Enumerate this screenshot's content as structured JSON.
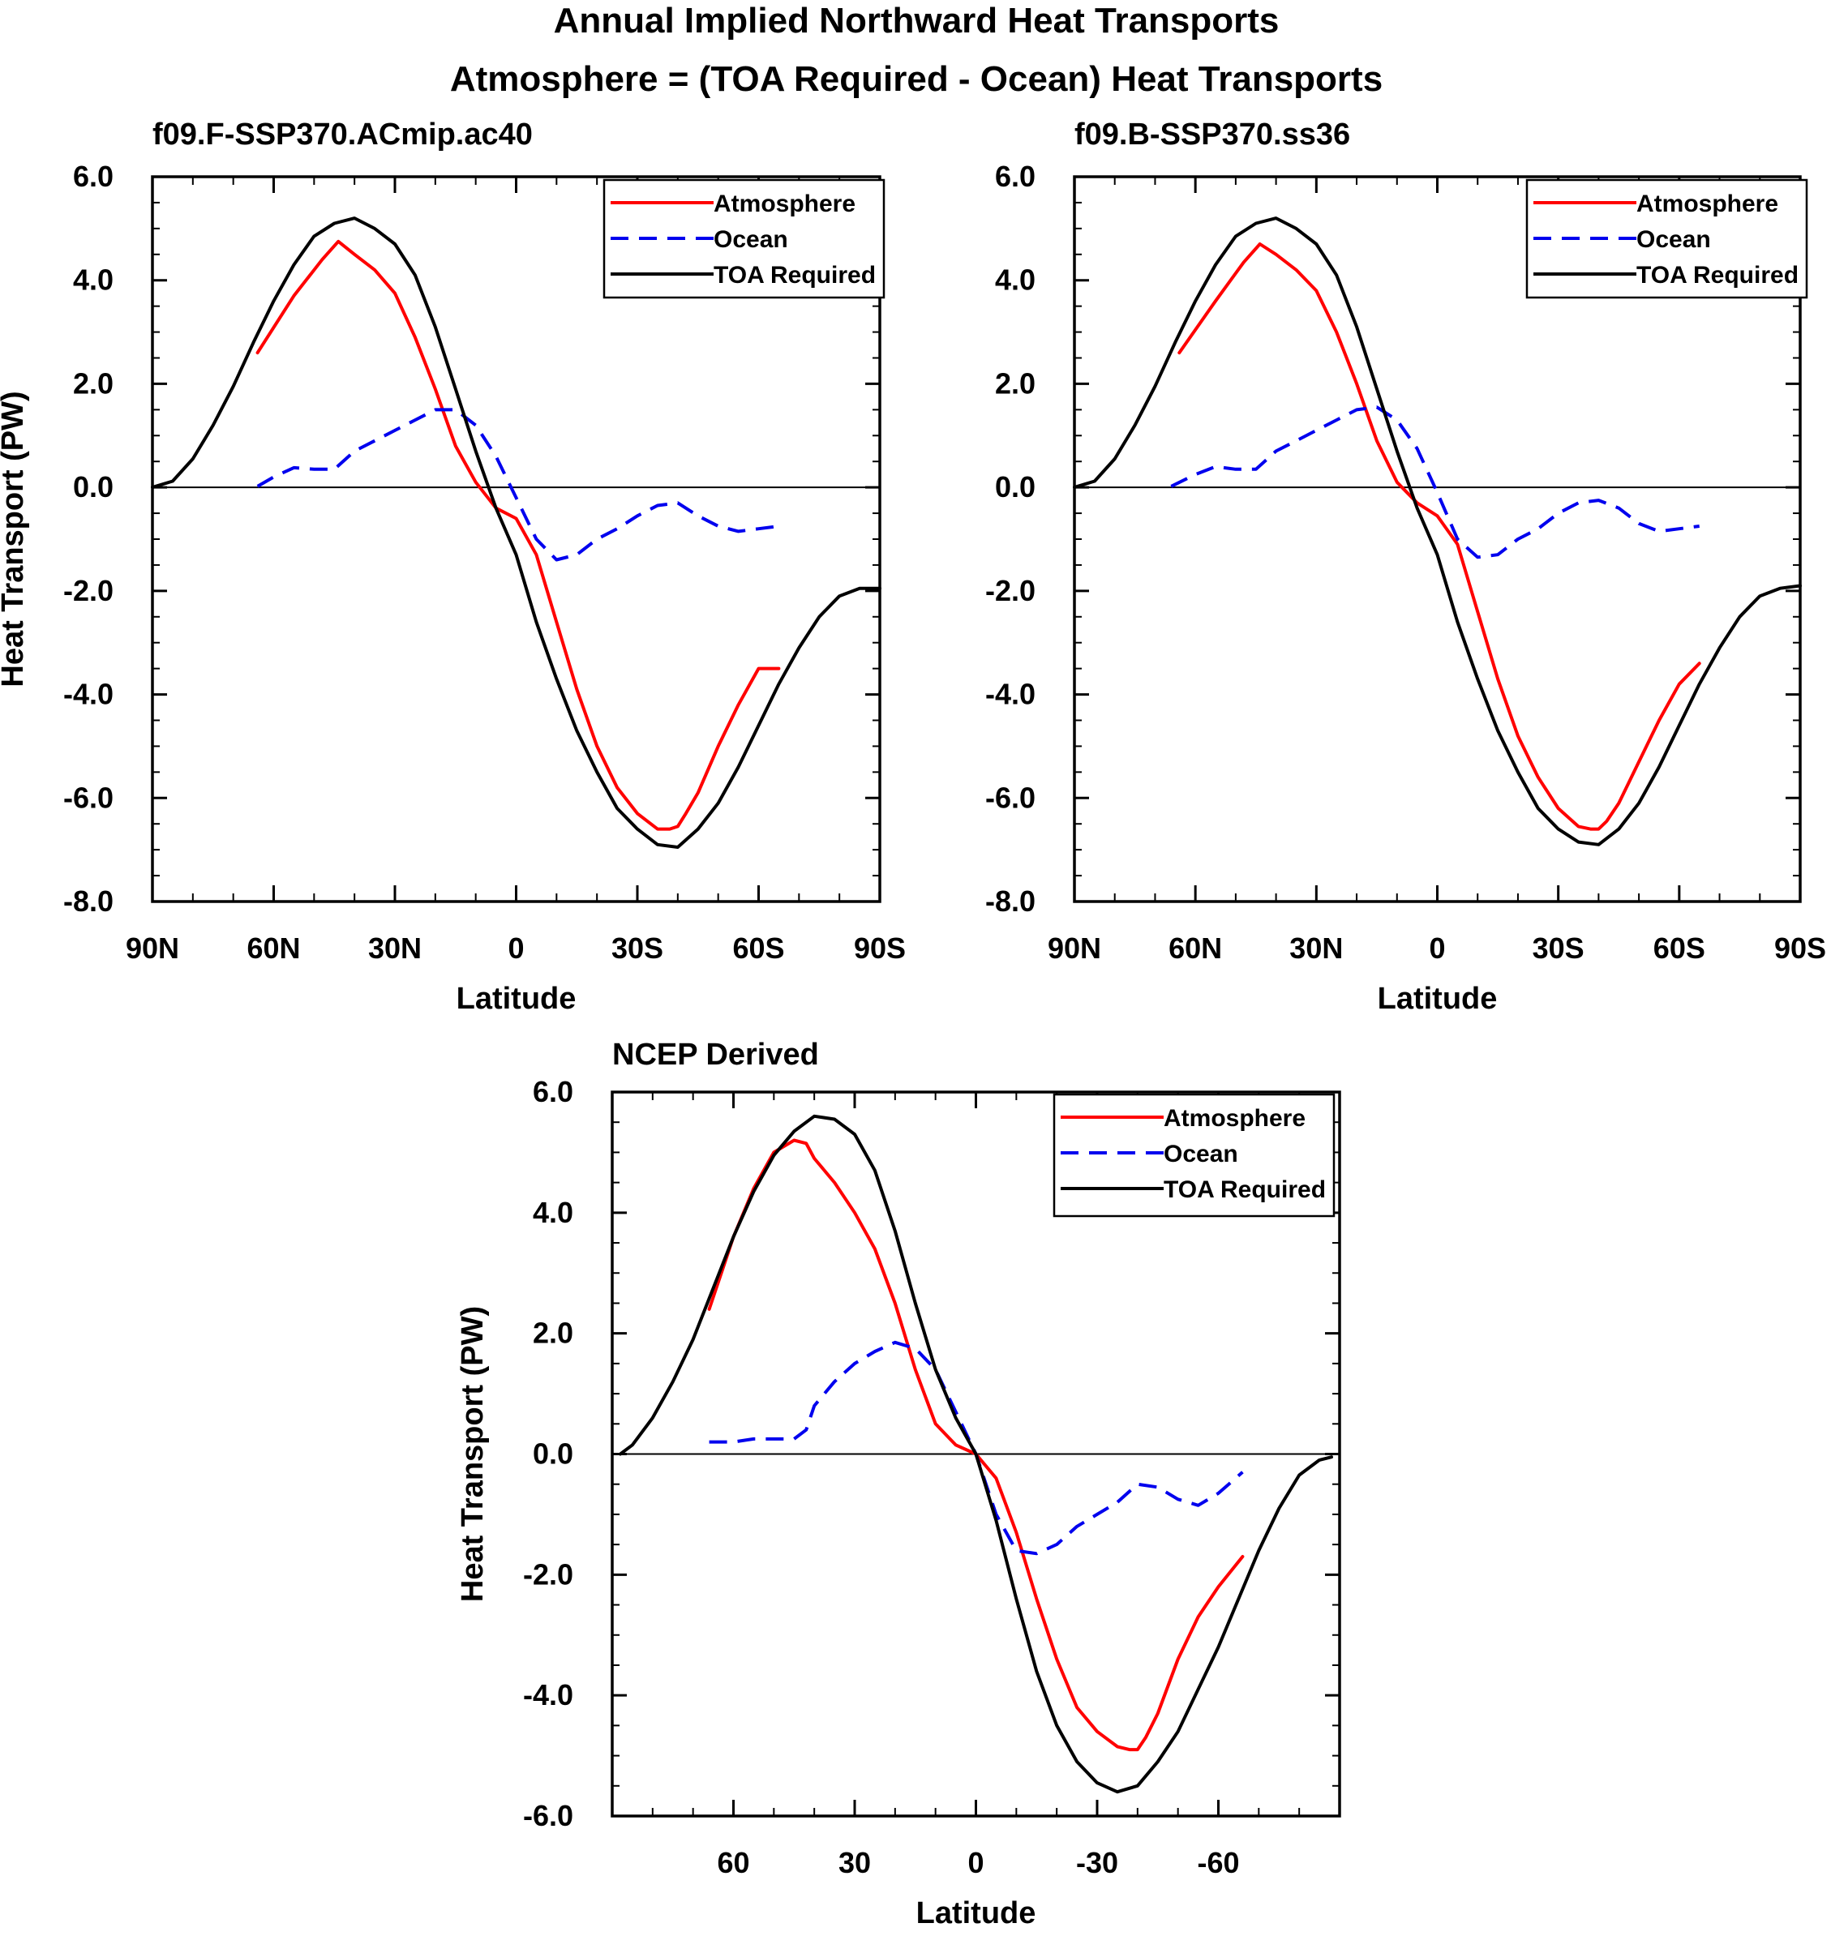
{
  "figure": {
    "title_line1": "Annual Implied Northward Heat Transports",
    "title_line2": "Atmosphere = (TOA Required - Ocean) Heat Transports"
  },
  "colors": {
    "atmosphere": "#ff0000",
    "ocean": "#0000ee",
    "toa": "#000000",
    "zero": "#000000"
  },
  "chart_data": [
    {
      "type": "line",
      "title": "f09.F-SSP370.ACmip.ac40",
      "xlabel": "Latitude",
      "ylabel": "Heat Transport (PW)",
      "xlim": [
        90,
        -90
      ],
      "ylim": [
        -8,
        6
      ],
      "xticks": [
        90,
        60,
        30,
        0,
        -30,
        -60,
        -90
      ],
      "xtick_labels": [
        "90N",
        "60N",
        "30N",
        "0",
        "30S",
        "60S",
        "90S"
      ],
      "yticks": [
        -8,
        -6,
        -4,
        -2,
        0,
        2,
        4,
        6
      ],
      "ytick_labels": [
        "-8.0",
        "-6.0",
        "-4.0",
        "-2.0",
        "0.0",
        "2.0",
        "4.0",
        "6.0"
      ],
      "legend_position": "top-right",
      "series": [
        {
          "name": "Atmosphere",
          "style": "solid",
          "color": "#ff0000",
          "x": [
            64,
            55,
            48,
            44,
            40,
            35,
            30,
            25,
            20,
            15,
            10,
            5,
            0,
            -5,
            -10,
            -15,
            -20,
            -25,
            -30,
            -35,
            -38,
            -40,
            -42,
            -45,
            -50,
            -55,
            -60,
            -65
          ],
          "y": [
            2.6,
            3.7,
            4.4,
            4.75,
            4.5,
            4.2,
            3.75,
            2.9,
            1.9,
            0.8,
            0.1,
            -0.4,
            -0.6,
            -1.3,
            -2.6,
            -3.9,
            -5.0,
            -5.8,
            -6.3,
            -6.6,
            -6.6,
            -6.55,
            -6.3,
            -5.9,
            -5.0,
            -4.2,
            -3.5,
            -3.5
          ]
        },
        {
          "name": "Ocean",
          "style": "dashed",
          "color": "#0000ee",
          "x": [
            64,
            60,
            55,
            50,
            45,
            40,
            35,
            30,
            25,
            20,
            15,
            10,
            5,
            0,
            -5,
            -10,
            -15,
            -20,
            -25,
            -30,
            -35,
            -40,
            -45,
            -50,
            -55,
            -60,
            -65
          ],
          "y": [
            0.02,
            0.2,
            0.38,
            0.35,
            0.35,
            0.7,
            0.9,
            1.1,
            1.3,
            1.5,
            1.5,
            1.2,
            0.6,
            -0.2,
            -1.0,
            -1.4,
            -1.3,
            -1.0,
            -0.8,
            -0.55,
            -0.35,
            -0.3,
            -0.55,
            -0.75,
            -0.85,
            -0.8,
            -0.75
          ]
        },
        {
          "name": "TOA Required",
          "style": "solid",
          "color": "#000000",
          "x": [
            90,
            85,
            80,
            75,
            70,
            65,
            60,
            55,
            50,
            45,
            40,
            35,
            30,
            25,
            20,
            15,
            10,
            5,
            0,
            -5,
            -10,
            -15,
            -20,
            -25,
            -30,
            -35,
            -40,
            -45,
            -50,
            -55,
            -60,
            -65,
            -70,
            -75,
            -80,
            -85,
            -90
          ],
          "y": [
            0.0,
            0.12,
            0.55,
            1.2,
            1.95,
            2.8,
            3.6,
            4.3,
            4.85,
            5.1,
            5.2,
            5.0,
            4.7,
            4.1,
            3.1,
            1.9,
            0.7,
            -0.4,
            -1.3,
            -2.6,
            -3.7,
            -4.7,
            -5.5,
            -6.2,
            -6.6,
            -6.9,
            -6.95,
            -6.6,
            -6.1,
            -5.4,
            -4.6,
            -3.8,
            -3.1,
            -2.5,
            -2.1,
            -1.95,
            -1.95
          ]
        }
      ]
    },
    {
      "type": "line",
      "title": "f09.B-SSP370.ss36",
      "xlabel": "Latitude",
      "ylabel": "",
      "xlim": [
        90,
        -90
      ],
      "ylim": [
        -8,
        6
      ],
      "xticks": [
        90,
        60,
        30,
        0,
        -30,
        -60,
        -90
      ],
      "xtick_labels": [
        "90N",
        "60N",
        "30N",
        "0",
        "30S",
        "60S",
        "90S"
      ],
      "yticks": [
        -8,
        -6,
        -4,
        -2,
        0,
        2,
        4,
        6
      ],
      "ytick_labels": [
        "-8.0",
        "-6.0",
        "-4.0",
        "-2.0",
        "0.0",
        "2.0",
        "4.0",
        "6.0"
      ],
      "legend_position": "top-right",
      "series": [
        {
          "name": "Atmosphere",
          "style": "solid",
          "color": "#ff0000",
          "x": [
            64,
            55,
            48,
            44,
            40,
            35,
            30,
            25,
            20,
            15,
            10,
            5,
            0,
            -5,
            -10,
            -15,
            -20,
            -25,
            -30,
            -35,
            -38,
            -40,
            -42,
            -45,
            -50,
            -55,
            -60,
            -65
          ],
          "y": [
            2.6,
            3.6,
            4.35,
            4.7,
            4.5,
            4.2,
            3.8,
            3.0,
            2.0,
            0.9,
            0.1,
            -0.3,
            -0.55,
            -1.1,
            -2.4,
            -3.7,
            -4.8,
            -5.6,
            -6.2,
            -6.55,
            -6.6,
            -6.6,
            -6.45,
            -6.1,
            -5.3,
            -4.5,
            -3.8,
            -3.4
          ]
        },
        {
          "name": "Ocean",
          "style": "dashed",
          "color": "#0000ee",
          "x": [
            66,
            60,
            55,
            50,
            45,
            40,
            35,
            30,
            25,
            20,
            15,
            10,
            5,
            0,
            -5,
            -10,
            -15,
            -20,
            -25,
            -30,
            -35,
            -40,
            -45,
            -50,
            -55,
            -60,
            -65
          ],
          "y": [
            0.02,
            0.25,
            0.4,
            0.35,
            0.35,
            0.7,
            0.9,
            1.1,
            1.3,
            1.5,
            1.55,
            1.3,
            0.75,
            -0.1,
            -1.0,
            -1.35,
            -1.3,
            -1.0,
            -0.8,
            -0.5,
            -0.3,
            -0.25,
            -0.4,
            -0.7,
            -0.85,
            -0.8,
            -0.75
          ]
        },
        {
          "name": "TOA Required",
          "style": "solid",
          "color": "#000000",
          "x": [
            90,
            85,
            80,
            75,
            70,
            65,
            60,
            55,
            50,
            45,
            40,
            35,
            30,
            25,
            20,
            15,
            10,
            5,
            0,
            -5,
            -10,
            -15,
            -20,
            -25,
            -30,
            -35,
            -40,
            -45,
            -50,
            -55,
            -60,
            -65,
            -70,
            -75,
            -80,
            -85,
            -90
          ],
          "y": [
            0.0,
            0.12,
            0.55,
            1.2,
            1.95,
            2.8,
            3.6,
            4.3,
            4.85,
            5.1,
            5.2,
            5.0,
            4.7,
            4.1,
            3.1,
            1.9,
            0.7,
            -0.4,
            -1.3,
            -2.6,
            -3.7,
            -4.7,
            -5.5,
            -6.2,
            -6.6,
            -6.85,
            -6.9,
            -6.6,
            -6.1,
            -5.4,
            -4.6,
            -3.8,
            -3.1,
            -2.5,
            -2.1,
            -1.95,
            -1.9
          ]
        }
      ]
    },
    {
      "type": "line",
      "title": "NCEP Derived",
      "xlabel": "Latitude",
      "ylabel": "Heat Transport (PW)",
      "xlim": [
        90,
        -90
      ],
      "ylim": [
        -6,
        6
      ],
      "xticks": [
        60,
        30,
        0,
        -30,
        -60
      ],
      "xtick_labels": [
        "60",
        "30",
        "0",
        "-30",
        "-60"
      ],
      "yticks": [
        -6,
        -4,
        -2,
        0,
        2,
        4,
        6
      ],
      "ytick_labels": [
        "-6.0",
        "-4.0",
        "-2.0",
        "0.0",
        "2.0",
        "4.0",
        "6.0"
      ],
      "legend_position": "top-right",
      "series": [
        {
          "name": "Atmosphere",
          "style": "solid",
          "color": "#ff0000",
          "x": [
            66,
            60,
            55,
            50,
            45,
            42,
            40,
            35,
            30,
            25,
            20,
            15,
            10,
            5,
            0,
            -5,
            -10,
            -15,
            -20,
            -25,
            -30,
            -35,
            -38,
            -40,
            -42,
            -45,
            -50,
            -55,
            -60,
            -66
          ],
          "y": [
            2.4,
            3.6,
            4.4,
            5.0,
            5.2,
            5.15,
            4.9,
            4.5,
            4.0,
            3.4,
            2.5,
            1.4,
            0.5,
            0.15,
            0.0,
            -0.4,
            -1.3,
            -2.4,
            -3.4,
            -4.2,
            -4.6,
            -4.85,
            -4.9,
            -4.9,
            -4.7,
            -4.3,
            -3.4,
            -2.7,
            -2.2,
            -1.7
          ]
        },
        {
          "name": "Ocean",
          "style": "dashed",
          "color": "#0000ee",
          "x": [
            66,
            60,
            55,
            50,
            45,
            42,
            40,
            35,
            30,
            25,
            20,
            15,
            10,
            5,
            0,
            -5,
            -10,
            -15,
            -20,
            -25,
            -30,
            -35,
            -40,
            -45,
            -50,
            -55,
            -60,
            -66
          ],
          "y": [
            0.2,
            0.2,
            0.25,
            0.25,
            0.25,
            0.4,
            0.8,
            1.2,
            1.5,
            1.7,
            1.85,
            1.75,
            1.4,
            0.7,
            0.0,
            -1.0,
            -1.6,
            -1.65,
            -1.5,
            -1.2,
            -1.0,
            -0.8,
            -0.5,
            -0.55,
            -0.75,
            -0.85,
            -0.65,
            -0.3
          ]
        },
        {
          "name": "TOA Required",
          "style": "solid",
          "color": "#000000",
          "x": [
            88,
            85,
            80,
            75,
            70,
            65,
            60,
            55,
            50,
            45,
            40,
            35,
            30,
            25,
            20,
            15,
            10,
            5,
            0,
            -5,
            -10,
            -15,
            -20,
            -25,
            -30,
            -35,
            -40,
            -45,
            -50,
            -55,
            -60,
            -65,
            -70,
            -75,
            -80,
            -85,
            -88
          ],
          "y": [
            0.0,
            0.15,
            0.6,
            1.2,
            1.9,
            2.75,
            3.6,
            4.35,
            4.95,
            5.35,
            5.6,
            5.55,
            5.3,
            4.7,
            3.7,
            2.5,
            1.4,
            0.6,
            0.0,
            -1.1,
            -2.4,
            -3.6,
            -4.5,
            -5.1,
            -5.45,
            -5.6,
            -5.5,
            -5.1,
            -4.6,
            -3.9,
            -3.2,
            -2.4,
            -1.6,
            -0.9,
            -0.35,
            -0.1,
            -0.05
          ]
        }
      ]
    }
  ]
}
